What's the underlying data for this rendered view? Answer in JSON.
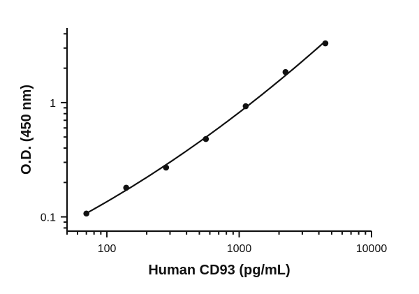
{
  "chart_data": {
    "type": "scatter",
    "title": "",
    "xlabel": "Human CD93 (pg/mL)",
    "ylabel": "O.D. (450 nm)",
    "xscale": "log",
    "yscale": "log",
    "xlim": [
      50,
      10000
    ],
    "ylim": [
      0.075,
      4.5
    ],
    "x_tick_labels": [
      "100",
      "1000",
      "10000"
    ],
    "y_tick_labels": [
      "0.1",
      "1"
    ],
    "grid": false,
    "legend": "none",
    "series": [
      {
        "x": [
          70,
          140,
          280,
          560,
          1120,
          2240,
          4480
        ],
        "y": [
          0.107,
          0.18,
          0.27,
          0.48,
          0.93,
          1.85,
          3.3
        ],
        "fit_curve": true
      }
    ]
  }
}
